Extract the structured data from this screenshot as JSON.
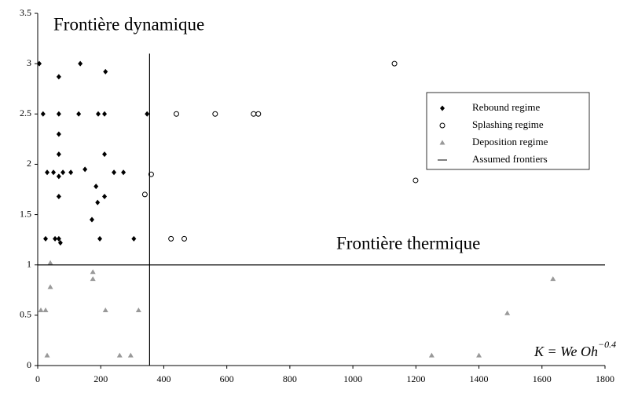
{
  "chart_data": {
    "type": "scatter",
    "xlim": [
      0,
      1800
    ],
    "xticks": [
      0,
      200,
      400,
      600,
      800,
      1000,
      1200,
      1400,
      1600,
      1800
    ],
    "ylim": [
      0,
      3.5
    ],
    "yticks": [
      0,
      0.5,
      1,
      1.5,
      2,
      2.5,
      3,
      3.5
    ],
    "xlabel": "K = We Oh",
    "xlabel_exponent": "−0.4",
    "annotations": [
      "Frontière dynamique",
      "Frontière thermique"
    ],
    "legend": "upper right",
    "series": [
      {
        "name": "Rebound regime",
        "color": "#000000",
        "marker": "diamond",
        "x": [
          5,
          17,
          25,
          30,
          50,
          55,
          67,
          67,
          67,
          67,
          67,
          67,
          67,
          72,
          80,
          105,
          130,
          135,
          150,
          172,
          185,
          190,
          192,
          197,
          212,
          212,
          212,
          215,
          242,
          272,
          305,
          347
        ],
        "values": [
          3.0,
          2.5,
          1.26,
          1.92,
          1.92,
          1.26,
          2.87,
          2.5,
          2.3,
          2.1,
          1.88,
          1.68,
          1.26,
          1.22,
          1.92,
          1.92,
          2.5,
          3.0,
          1.95,
          1.45,
          1.78,
          1.62,
          2.5,
          1.26,
          2.5,
          2.1,
          1.68,
          2.92,
          1.92,
          1.92,
          1.26,
          2.5
        ]
      },
      {
        "name": "Splashing regime",
        "color": "#000000",
        "marker": "circle",
        "x": [
          360,
          340,
          423,
          465,
          440,
          563,
          685,
          700,
          1132,
          1199
        ],
        "values": [
          1.9,
          1.7,
          1.26,
          1.26,
          2.5,
          2.5,
          2.5,
          2.5,
          3.0,
          1.84
        ]
      },
      {
        "name": "Deposition regime",
        "color": "#999999",
        "marker": "triangle",
        "x": [
          175,
          175,
          215,
          320,
          40,
          40,
          10,
          25,
          30,
          260,
          295,
          1250,
          1400,
          1490,
          1635
        ],
        "values": [
          0.93,
          0.86,
          0.55,
          0.55,
          1.02,
          0.78,
          0.55,
          0.55,
          0.1,
          0.1,
          0.1,
          0.1,
          0.1,
          0.52,
          0.86
        ]
      },
      {
        "name": "Assumed frontiers",
        "color": "#000000",
        "marker": "line",
        "segments": [
          {
            "x": [
              355,
              355
            ],
            "values": [
              0,
              3.1
            ]
          },
          {
            "x": [
              0,
              1800
            ],
            "values": [
              1,
              1
            ]
          }
        ]
      }
    ]
  }
}
